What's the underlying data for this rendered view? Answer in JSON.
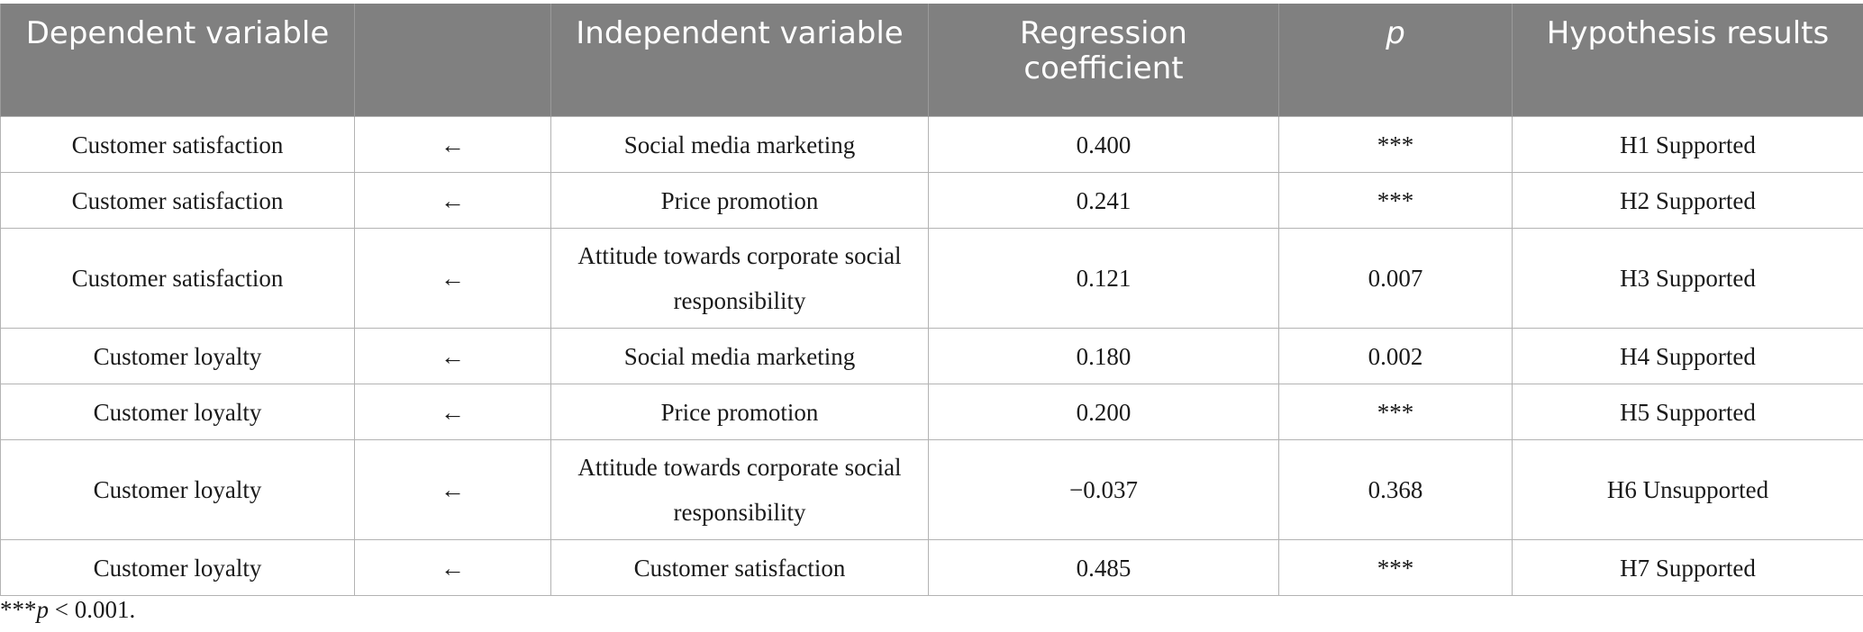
{
  "headers": [
    "Dependent variable",
    "",
    "Independent variable",
    "Regression coefficient",
    "p",
    "Hypothesis results"
  ],
  "rows": [
    {
      "dep": "Customer satisfaction",
      "arrow": "←",
      "indep": "Social media marketing",
      "coef": "0.400",
      "p": "***",
      "result": "H1 Supported"
    },
    {
      "dep": "Customer satisfaction",
      "arrow": "←",
      "indep": "Price promotion",
      "coef": "0.241",
      "p": "***",
      "result": "H2 Supported"
    },
    {
      "dep": "Customer satisfaction",
      "arrow": "←",
      "indep": "Attitude towards corporate social responsibility",
      "coef": "0.121",
      "p": "0.007",
      "result": "H3 Supported"
    },
    {
      "dep": "Customer loyalty",
      "arrow": "←",
      "indep": "Social media marketing",
      "coef": "0.180",
      "p": "0.002",
      "result": "H4 Supported"
    },
    {
      "dep": "Customer loyalty",
      "arrow": "←",
      "indep": "Price promotion",
      "coef": "0.200",
      "p": "***",
      "result": "H5 Supported"
    },
    {
      "dep": "Customer loyalty",
      "arrow": "←",
      "indep": "Attitude towards corporate social responsibility",
      "coef": "−0.037",
      "p": "0.368",
      "result": "H6 Unsupported"
    },
    {
      "dep": "Customer loyalty",
      "arrow": "←",
      "indep": "Customer satisfaction",
      "coef": "0.485",
      "p": "***",
      "result": "H7 Supported"
    }
  ],
  "footnote": {
    "stars": "***",
    "p": "p",
    "rest": " < 0.001."
  }
}
